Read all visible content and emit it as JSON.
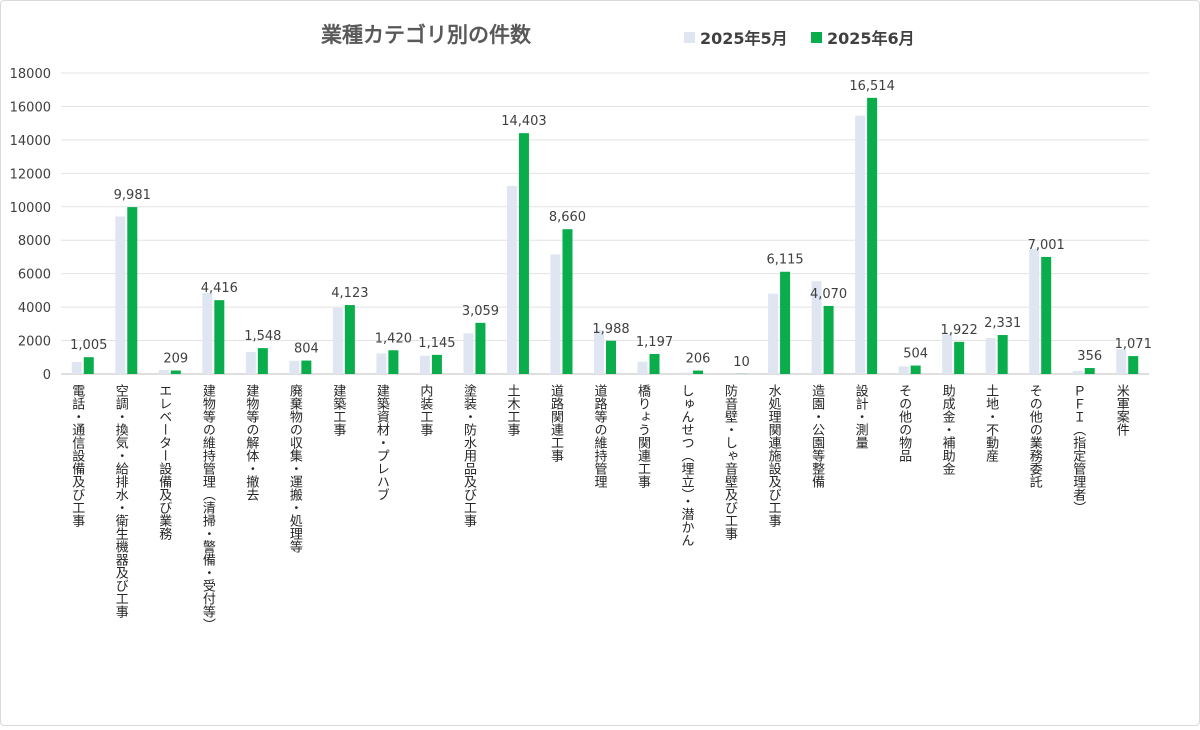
{
  "chart_data": {
    "type": "bar",
    "title": "業種カテゴリ別の件数",
    "xlabel": "",
    "ylabel": "",
    "ylim": [
      0,
      18000
    ],
    "yticks": [
      0,
      2000,
      4000,
      6000,
      8000,
      10000,
      12000,
      14000,
      16000,
      18000
    ],
    "grid": true,
    "legend_position": "top-right",
    "categories": [
      "電話・通信設備及び工事",
      "空調・換気・給排水・衛生機器及び工事",
      "エレベーター設備及び業務",
      "建物等の維持管理（清掃・警備・受付等）",
      "建物等の解体・撤去",
      "廃棄物の収集・運搬・処理等",
      "建築工事",
      "建築資材・プレハブ",
      "内装工事",
      "塗装・防水用品及び工事",
      "土木工事",
      "道路関連工事",
      "道路等の維持管理",
      "橋りょう関連工事",
      "しゅんせつ（埋立）・潜かん",
      "防音壁・しゃ音壁及び工事",
      "水処理関連施設及び工事",
      "造園・公園等整備",
      "設計・測量",
      "その他の物品",
      "助成金・補助金",
      "土地・不動産",
      "その他の業務委託",
      "ＰＦＩ（指定管理者）",
      "米軍案件"
    ],
    "series": [
      {
        "name": "2025年5月",
        "color": "#dfe6f2",
        "values": [
          720,
          9420,
          240,
          4850,
          1320,
          790,
          3950,
          1230,
          1090,
          2430,
          11250,
          7150,
          2620,
          740,
          90,
          0,
          4800,
          5550,
          15450,
          460,
          2380,
          2150,
          7480,
          180,
          1480
        ]
      },
      {
        "name": "2025年6月",
        "color": "#0aad4c",
        "values": [
          1005,
          9981,
          209,
          4416,
          1548,
          804,
          4123,
          1420,
          1145,
          3059,
          14403,
          8660,
          1988,
          1197,
          206,
          10,
          6115,
          4070,
          16514,
          504,
          1922,
          2331,
          7001,
          356,
          1071
        ],
        "data_labels": [
          "1,005",
          "9,981",
          "209",
          "4,416",
          "1,548",
          "804",
          "4,123",
          "1,420",
          "1,145",
          "3,059",
          "14,403",
          "8,660",
          "1,988",
          "1,197",
          "206",
          "10",
          "6,115",
          "4,070",
          "16,514",
          "504",
          "1,922",
          "2,331",
          "7,001",
          "356",
          "1,071"
        ]
      }
    ]
  }
}
